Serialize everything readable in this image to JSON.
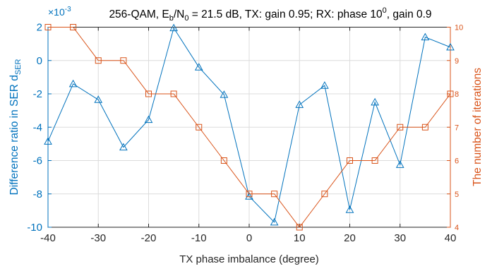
{
  "chart_data": {
    "type": "line",
    "title": {
      "prefix": "256-QAM, E",
      "sub1": "b",
      "mid1": "/N",
      "sub2": "0",
      "mid2": " = 21.5 dB, TX: gain 0.95;  RX: phase 10",
      "sup": "0",
      "suffix": ", gain 0.9"
    },
    "xlabel": "TX phase imbalance (degree)",
    "ylabel_left": {
      "main": "Difference ratio in SER d",
      "sub": "SER"
    },
    "ylabel_right": "The number of iterations",
    "left_exponent": "×10",
    "left_exponent_power": "-3",
    "xlim": [
      -40,
      40
    ],
    "ylim_left": [
      -10,
      2
    ],
    "ylim_right": [
      4,
      10
    ],
    "x_ticks": [
      -40,
      -30,
      -20,
      -10,
      0,
      10,
      20,
      30,
      40
    ],
    "y_left_ticks": [
      -10,
      -8,
      -6,
      -4,
      -2,
      0,
      2
    ],
    "y_right_ticks": [
      4,
      5,
      6,
      7,
      8,
      9,
      10
    ],
    "grid": true,
    "x": [
      -40,
      -35,
      -30,
      -25,
      -20,
      -15,
      -10,
      -5,
      0,
      5,
      10,
      15,
      20,
      25,
      30,
      35,
      40
    ],
    "series": [
      {
        "axis": "left",
        "marker": "triangle",
        "color": "#0072BD",
        "values": [
          -4.85,
          -1.4,
          -2.35,
          -5.2,
          -3.55,
          1.95,
          -0.4,
          -2.05,
          -8.15,
          -9.7,
          -2.65,
          -1.5,
          -8.95,
          -2.5,
          -6.25,
          1.4,
          0.8
        ]
      },
      {
        "axis": "right",
        "marker": "square",
        "color": "#D95319",
        "values": [
          10,
          10,
          9,
          9,
          8,
          8,
          7,
          6,
          5,
          5,
          4,
          5,
          6,
          6,
          7,
          7,
          8
        ]
      }
    ]
  },
  "colors": {
    "left_axis": "#0072BD",
    "right_axis": "#D95319",
    "grid": "#dcdcdc",
    "text": "#262626"
  }
}
